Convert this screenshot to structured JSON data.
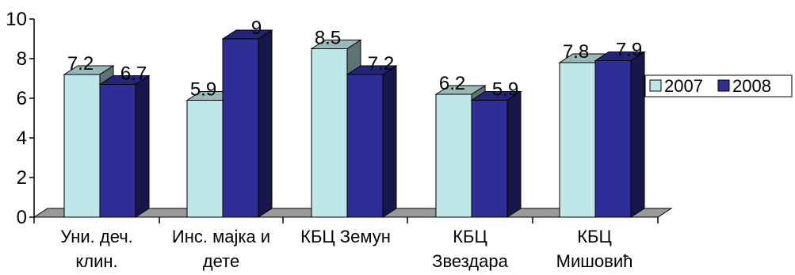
{
  "chart_data": {
    "type": "bar",
    "title": "",
    "xlabel": "",
    "ylabel": "",
    "ylim": [
      0,
      10
    ],
    "yticks": [
      "0",
      "2",
      "4",
      "6",
      "8",
      "10"
    ],
    "categories": [
      [
        "Уни. деч.",
        "клин."
      ],
      [
        "Инс. мајка и",
        "дете"
      ],
      [
        "КБЦ Земун"
      ],
      [
        "КБЦ",
        "Звездара"
      ],
      [
        "КБЦ",
        "Мишовић"
      ]
    ],
    "series": [
      {
        "name": "2007",
        "values": [
          7.2,
          5.9,
          8.5,
          6.2,
          7.8
        ],
        "labels": [
          "7.2",
          "5.9",
          "8.5",
          "6.2",
          "7.8"
        ],
        "color": "#bfe6e8"
      },
      {
        "name": "2008",
        "values": [
          6.7,
          9,
          7.2,
          5.9,
          7.9
        ],
        "labels": [
          "6.7",
          "9",
          "7.2",
          "5.9",
          "7.9"
        ],
        "color": "#2e2e96"
      }
    ],
    "legend_position": "right",
    "grid": false,
    "three_d": true
  }
}
